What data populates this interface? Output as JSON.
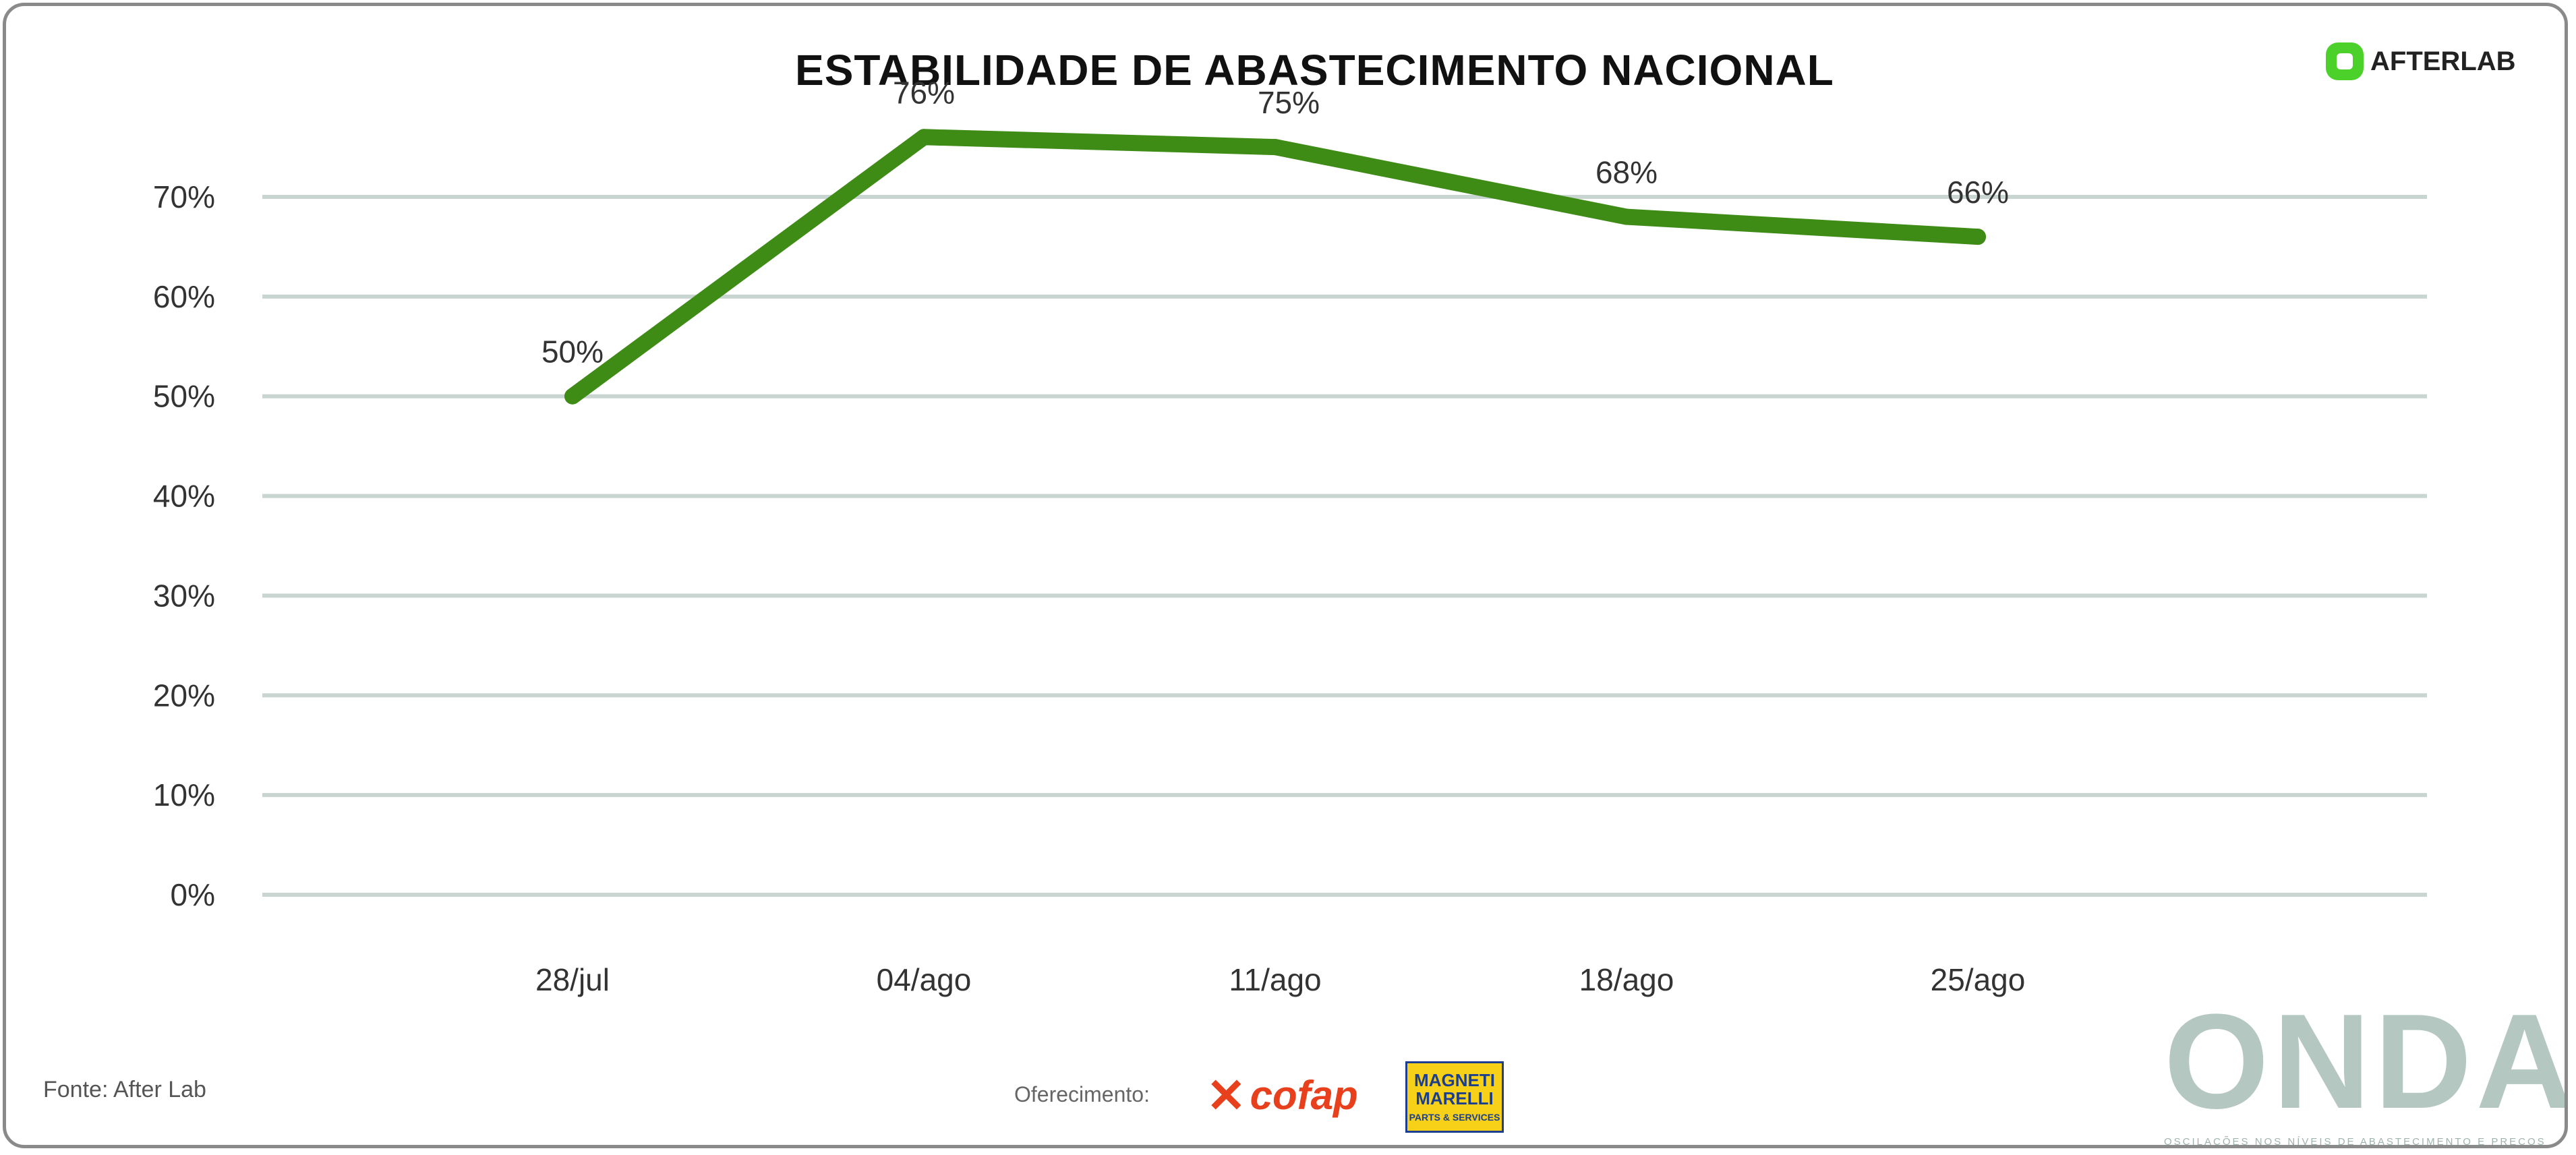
{
  "header": {
    "title": "ESTABILIDADE DE ABASTECIMENTO NACIONAL",
    "brand": "AFTERLAB"
  },
  "footer": {
    "source": "Fonte: After Lab",
    "sponsor_label": "Oferecimento:",
    "sponsor1": "cofap",
    "sponsor2_line1": "MAGNETI",
    "sponsor2_line2": "MARELLI",
    "sponsor2_line3": "PARTS & SERVICES",
    "onda_word": "ONDA",
    "onda_tagline": "OSCILAÇÕES NOS NÍVEIS DE ABASTECIMENTO E PREÇOS"
  },
  "colors": {
    "line": "#3e8c16",
    "grid": "#c9d5d1",
    "text": "#333333"
  },
  "chart_data": {
    "type": "line",
    "title": "ESTABILIDADE DE ABASTECIMENTO NACIONAL",
    "xlabel": "",
    "ylabel": "",
    "categories": [
      "28/jul",
      "04/ago",
      "11/ago",
      "18/ago",
      "25/ago"
    ],
    "series": [
      {
        "values": [
          50,
          76,
          75,
          68,
          66
        ]
      }
    ],
    "data_labels": [
      "50%",
      "76%",
      "75%",
      "68%",
      "66%"
    ],
    "yticks": [
      "0%",
      "10%",
      "20%",
      "30%",
      "40%",
      "50%",
      "60%",
      "70%"
    ],
    "ylim": [
      0,
      70
    ],
    "grid": true,
    "legend": "none"
  }
}
